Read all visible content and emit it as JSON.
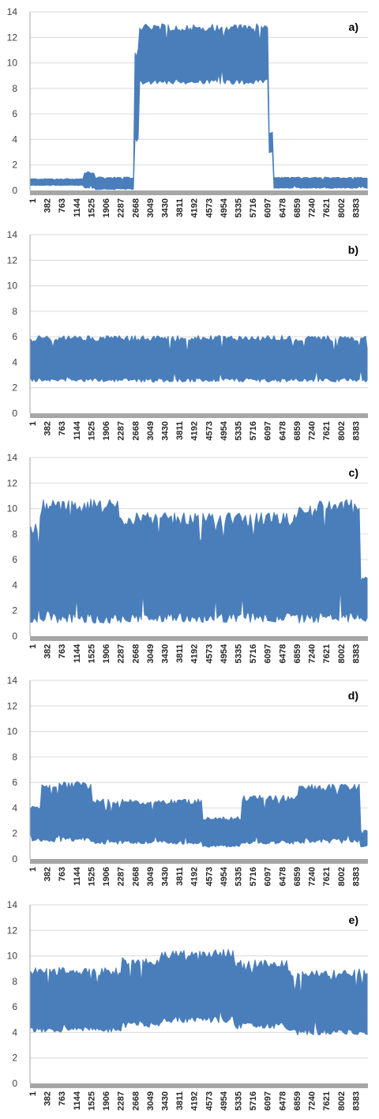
{
  "chart_data": [
    {
      "type": "line",
      "label": "a)",
      "ylim": [
        0,
        14
      ],
      "yticks": [
        0,
        2,
        4,
        6,
        8,
        10,
        12,
        14
      ],
      "xticks": [
        "1",
        "382",
        "763",
        "1144",
        "1525",
        "1906",
        "2287",
        "2668",
        "3049",
        "3430",
        "3811",
        "4192",
        "4573",
        "4954",
        "5335",
        "5716",
        "6097",
        "6478",
        "6859",
        "7240",
        "7621",
        "8002",
        "8383"
      ],
      "x_range": [
        1,
        8800
      ],
      "color": "#4a7ebb",
      "segments": [
        {
          "x": [
            1,
            1400
          ],
          "low": 0.4,
          "high": 0.9
        },
        {
          "x": [
            1400,
            1700
          ],
          "low": 0.2,
          "high": 1.4
        },
        {
          "x": [
            1700,
            2700
          ],
          "low": 0.1,
          "high": 1.0
        },
        {
          "x": [
            2700,
            2850
          ],
          "low": 4.0,
          "high": 11.0
        },
        {
          "x": [
            2850,
            6200
          ],
          "low": 8.5,
          "high": 12.8
        },
        {
          "x": [
            6200,
            6330
          ],
          "low": 3.0,
          "high": 4.5
        },
        {
          "x": [
            6330,
            8800
          ],
          "low": 0.2,
          "high": 1.0
        }
      ]
    },
    {
      "type": "line",
      "label": "b)",
      "ylim": [
        0,
        14
      ],
      "yticks": [
        0,
        2,
        4,
        6,
        8,
        10,
        12,
        14
      ],
      "xticks": [
        "1",
        "382",
        "763",
        "1144",
        "1525",
        "1906",
        "2287",
        "2668",
        "3049",
        "3430",
        "3811",
        "4192",
        "4573",
        "4954",
        "5335",
        "5716",
        "6097",
        "6478",
        "6859",
        "7240",
        "7621",
        "8002",
        "8383"
      ],
      "x_range": [
        1,
        8800
      ],
      "color": "#4a7ebb",
      "segments": [
        {
          "x": [
            1,
            8800
          ],
          "low": 2.6,
          "high": 5.9
        }
      ]
    },
    {
      "type": "line",
      "label": "c)",
      "ylim": [
        0,
        14
      ],
      "yticks": [
        0,
        2,
        4,
        6,
        8,
        10,
        12,
        14
      ],
      "xticks": [
        "1",
        "382",
        "763",
        "1144",
        "1525",
        "1906",
        "2287",
        "2668",
        "3049",
        "3430",
        "3811",
        "4192",
        "4573",
        "4954",
        "5335",
        "5716",
        "6097",
        "6478",
        "6859",
        "7240",
        "7621",
        "8002",
        "8383"
      ],
      "x_range": [
        1,
        8800
      ],
      "color": "#4a7ebb",
      "segments": [
        {
          "x": [
            1,
            250
          ],
          "low": 1.3,
          "high": 8.5
        },
        {
          "x": [
            250,
            2300
          ],
          "low": 1.4,
          "high": 10.2
        },
        {
          "x": [
            2300,
            7000
          ],
          "low": 1.4,
          "high": 9.2
        },
        {
          "x": [
            7000,
            8600
          ],
          "low": 1.4,
          "high": 10.2
        },
        {
          "x": [
            8600,
            8800
          ],
          "low": 1.3,
          "high": 4.5
        }
      ]
    },
    {
      "type": "line",
      "label": "d)",
      "ylim": [
        0,
        14
      ],
      "yticks": [
        0,
        2,
        4,
        6,
        8,
        10,
        12,
        14
      ],
      "xticks": [
        "1",
        "382",
        "763",
        "1144",
        "1525",
        "1906",
        "2287",
        "2668",
        "3049",
        "3430",
        "3811",
        "4192",
        "4573",
        "4954",
        "5335",
        "5716",
        "6097",
        "6478",
        "6859",
        "7240",
        "7621",
        "8002",
        "8383"
      ],
      "x_range": [
        1,
        8800
      ],
      "color": "#4a7ebb",
      "segments": [
        {
          "x": [
            1,
            300
          ],
          "low": 1.5,
          "high": 4.0
        },
        {
          "x": [
            300,
            1600
          ],
          "low": 1.5,
          "high": 5.8
        },
        {
          "x": [
            1600,
            4500
          ],
          "low": 1.3,
          "high": 4.5
        },
        {
          "x": [
            4500,
            5500
          ],
          "low": 1.0,
          "high": 3.2
        },
        {
          "x": [
            5500,
            7000
          ],
          "low": 1.3,
          "high": 4.8
        },
        {
          "x": [
            7000,
            8600
          ],
          "low": 1.4,
          "high": 5.6
        },
        {
          "x": [
            8600,
            8800
          ],
          "low": 1.0,
          "high": 2.2
        }
      ]
    },
    {
      "type": "line",
      "label": "e)",
      "ylim": [
        0,
        14
      ],
      "yticks": [
        0,
        2,
        4,
        6,
        8,
        10,
        12,
        14
      ],
      "xticks": [
        "1",
        "382",
        "763",
        "1144",
        "1525",
        "1906",
        "2287",
        "2668",
        "3049",
        "3430",
        "3811",
        "4192",
        "4573",
        "4954",
        "5335",
        "5716",
        "6097",
        "6478",
        "6859",
        "7240",
        "7621",
        "8002",
        "8383"
      ],
      "x_range": [
        1,
        8800
      ],
      "color": "#4a7ebb",
      "segments": [
        {
          "x": [
            1,
            2400
          ],
          "low": 4.2,
          "high": 8.8
        },
        {
          "x": [
            2400,
            3400
          ],
          "low": 4.6,
          "high": 9.6
        },
        {
          "x": [
            3400,
            5300
          ],
          "low": 5.0,
          "high": 10.2
        },
        {
          "x": [
            5300,
            6700
          ],
          "low": 4.5,
          "high": 9.4
        },
        {
          "x": [
            6700,
            8800
          ],
          "low": 4.0,
          "high": 8.7
        }
      ]
    }
  ]
}
